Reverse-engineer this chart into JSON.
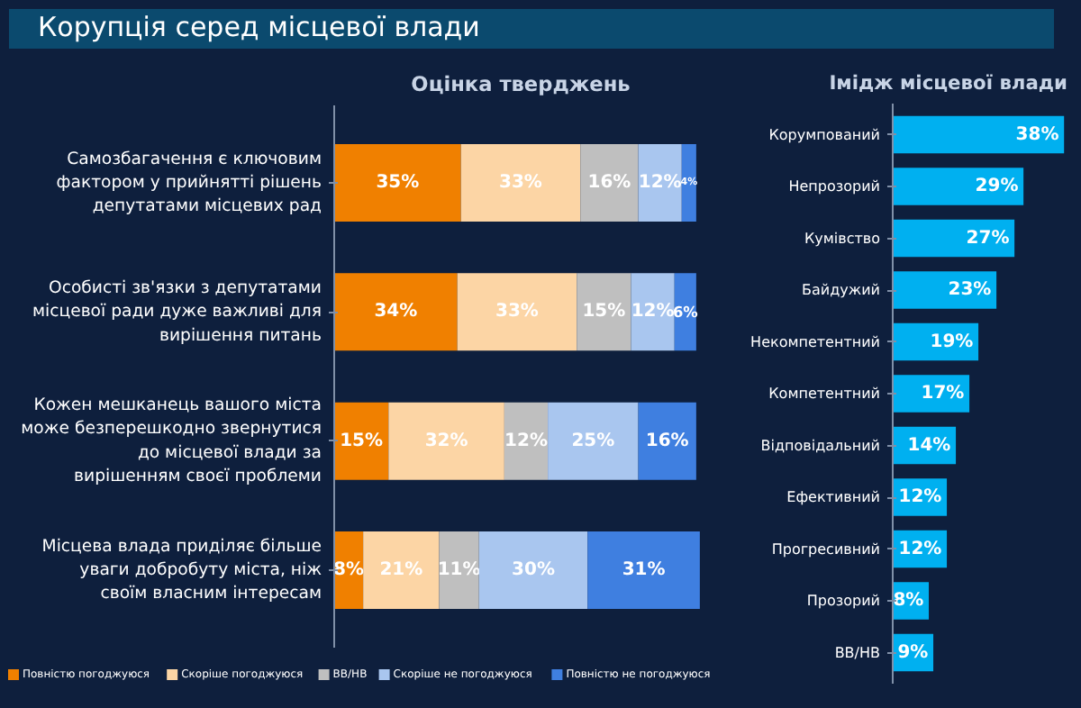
{
  "chart_data": [
    {
      "type": "bar",
      "title": "Корупція серед місцевої влади",
      "subtitle": "Оцінка тверджень",
      "orientation": "horizontal",
      "stacked": true,
      "legend": "bottom",
      "grid": false,
      "categories": [
        "Самозбагачення є ключовим фактором у прийнятті рішень депутатами місцевих рад",
        "Особисті зв'язки з депутатами місцевої ради дуже важливі для вирішення питань",
        "Кожен мешканець вашого міста може безперешкодно звернутися до місцевої влади за вирішенням своєї проблеми",
        "Місцева влада приділяє більше уваги добробуту міста, ніж своїм власним інтересам"
      ],
      "series": [
        {
          "name": "Повністю погоджуюся",
          "color": "#f08000",
          "values": [
            35,
            34,
            15,
            8
          ],
          "value_labels": [
            "35%",
            "34%",
            "15%",
            "8%"
          ]
        },
        {
          "name": "Скоріше погоджуюся",
          "color": "#fcd5a5",
          "values": [
            33,
            33,
            32,
            21
          ],
          "value_labels": [
            "33%",
            "33%",
            "32%",
            "21%"
          ]
        },
        {
          "name": "ВВ/НВ",
          "color": "#bfbfbf",
          "values": [
            16,
            15,
            12,
            11
          ],
          "value_labels": [
            "16%",
            "15%",
            "12%",
            "11%"
          ]
        },
        {
          "name": "Скоріше не погоджуюся",
          "color": "#a9c6ef",
          "values": [
            12,
            12,
            25,
            30
          ],
          "value_labels": [
            "12%",
            "12%",
            "25%",
            "30%"
          ]
        },
        {
          "name": "Повністю не погоджуюся",
          "color": "#3f7fe0",
          "values": [
            4,
            6,
            16,
            31
          ],
          "value_labels": [
            "4%",
            "6%",
            "16%",
            "31%"
          ]
        }
      ]
    },
    {
      "type": "bar",
      "title": "Імідж місцевої влади",
      "orientation": "horizontal",
      "grid": false,
      "categories": [
        "Корумпований",
        "Непрозорий",
        "Кумівство",
        "Байдужий",
        "Некомпетентний",
        "Компетентний",
        "Відповідальний",
        "Ефективний",
        "Прогресивний",
        "Прозорий",
        "ВВ/НВ"
      ],
      "series": [
        {
          "color": "#00b0f0",
          "values": [
            38,
            29,
            27,
            23,
            19,
            17,
            14,
            12,
            12,
            8,
            9
          ],
          "value_labels": [
            "38%",
            "29%",
            "27%",
            "23%",
            "19%",
            "17%",
            "14%",
            "12%",
            "12%",
            "8%",
            "9%"
          ]
        }
      ]
    }
  ]
}
